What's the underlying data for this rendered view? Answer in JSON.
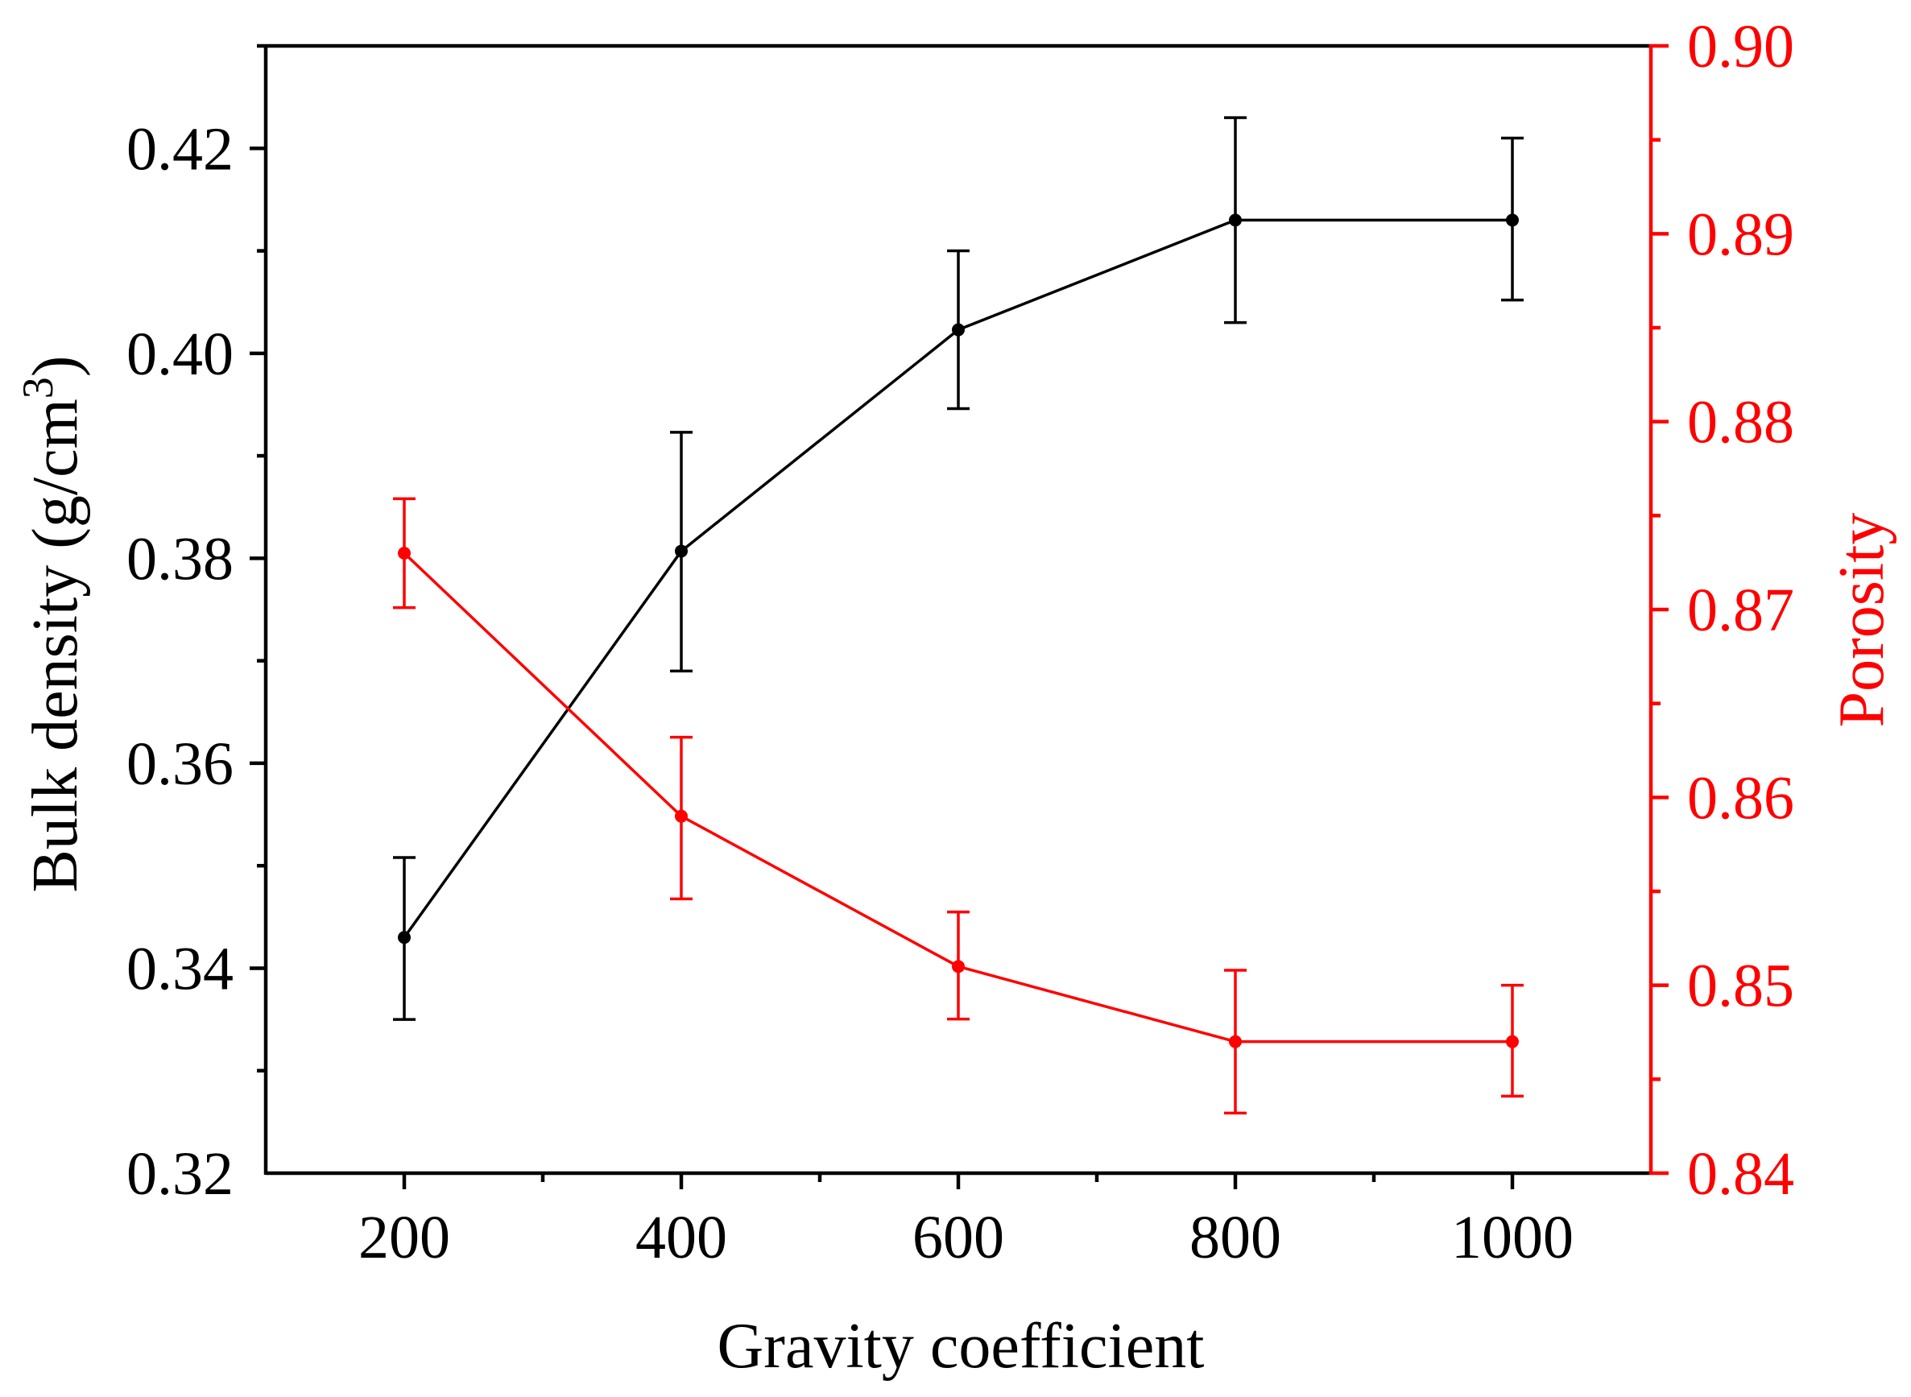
{
  "colors": {
    "left_series": "#000000",
    "right_series": "#ff0000",
    "axis_left": "#000000",
    "axis_right": "#ff0000"
  },
  "chart_data": {
    "type": "line",
    "title": "",
    "xlabel": "Gravity coefficient",
    "ylabel_left": "Bulk density (g/cm³)",
    "ylabel_left_main": "Bulk density (g/cm",
    "ylabel_left_sup": "3",
    "ylabel_left_close": ")",
    "ylabel_right": "Porosity",
    "xlim": [
      100,
      1100
    ],
    "ylim_left": [
      0.32,
      0.43
    ],
    "ylim_right": [
      0.84,
      0.9
    ],
    "x_ticks": [
      200,
      400,
      600,
      800,
      1000
    ],
    "x_tick_labels": [
      "200",
      "400",
      "600",
      "800",
      "1000"
    ],
    "y_left_ticks": [
      0.32,
      0.34,
      0.36,
      0.38,
      0.4,
      0.42
    ],
    "y_left_tick_labels": [
      "0.32",
      "0.34",
      "0.36",
      "0.38",
      "0.40",
      "0.42"
    ],
    "y_right_ticks": [
      0.84,
      0.85,
      0.86,
      0.87,
      0.88,
      0.89,
      0.9
    ],
    "y_right_tick_labels": [
      "0.84",
      "0.85",
      "0.86",
      "0.87",
      "0.88",
      "0.89",
      "0.90"
    ],
    "series": [
      {
        "name": "Bulk density",
        "axis": "left",
        "color": "#000000",
        "x": [
          200,
          400,
          600,
          800,
          1000
        ],
        "values": [
          0.343,
          0.3807,
          0.4023,
          0.413,
          0.413
        ],
        "err_low": [
          0.335,
          0.369,
          0.3946,
          0.403,
          0.4052
        ],
        "err_high": [
          0.3508,
          0.3923,
          0.41,
          0.423,
          0.421
        ]
      },
      {
        "name": "Porosity",
        "axis": "right",
        "color": "#ff0000",
        "x": [
          200,
          400,
          600,
          800,
          1000
        ],
        "values": [
          0.873,
          0.859,
          0.851,
          0.847,
          0.847
        ],
        "err_low": [
          0.8701,
          0.8546,
          0.8482,
          0.8432,
          0.8441
        ],
        "err_high": [
          0.8759,
          0.8632,
          0.8539,
          0.8508,
          0.85
        ]
      }
    ]
  }
}
